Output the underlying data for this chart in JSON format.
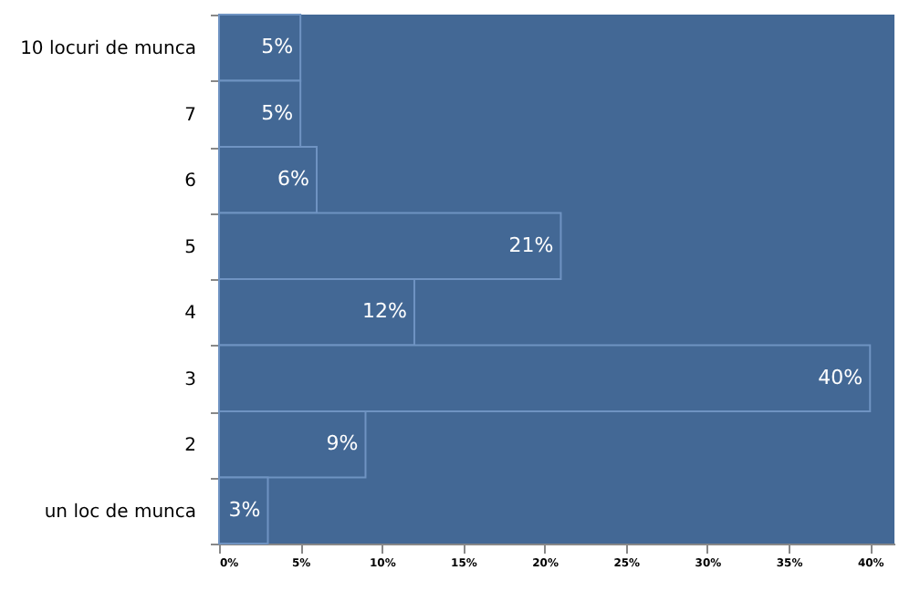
{
  "chart_data": {
    "type": "bar",
    "orientation": "horizontal",
    "categories": [
      "10 locuri de munca",
      "7",
      "6",
      "5",
      "4",
      "3",
      "2",
      "un loc de munca"
    ],
    "values": [
      5,
      5,
      6,
      21,
      12,
      40,
      9,
      3
    ],
    "color": "#436895",
    "value_labels": [
      "5%",
      "5%",
      "6%",
      "21%",
      "12%",
      "40%",
      "9%",
      "3%"
    ],
    "xlim": [
      0,
      41.5
    ],
    "xticks": [
      {
        "value": 0,
        "label": "0%"
      },
      {
        "value": 5,
        "label": "5%"
      },
      {
        "value": 10,
        "label": "10%"
      },
      {
        "value": 15,
        "label": "15%"
      },
      {
        "value": 20,
        "label": "20%"
      },
      {
        "value": 25,
        "label": "25%"
      },
      {
        "value": 30,
        "label": "30%"
      },
      {
        "value": 35,
        "label": "35%"
      },
      {
        "value": 40,
        "label": "40%"
      }
    ],
    "grid": false
  }
}
